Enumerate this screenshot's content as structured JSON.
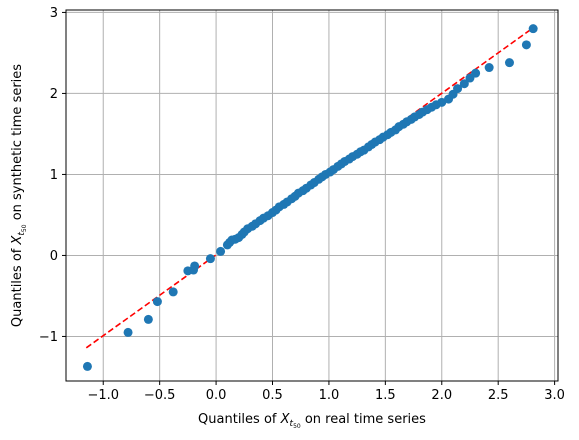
{
  "chart_data": {
    "type": "scatter",
    "xlabel": {
      "prefix": "Quantiles of ",
      "symbol": "X",
      "subscript": "t",
      "subsubscript": "50",
      "suffix": " on real time series"
    },
    "ylabel": {
      "prefix": "Quantiles of ",
      "symbol": "X",
      "subscript": "t",
      "subsubscript": "50",
      "suffix": " on synthetic time series"
    },
    "xlim": [
      -1.33,
      3.03
    ],
    "ylim": [
      -1.55,
      3.03
    ],
    "x_ticks": [
      -1.0,
      -0.5,
      0.0,
      0.5,
      1.0,
      1.5,
      2.0,
      2.5,
      3.0
    ],
    "x_tick_labels": [
      "−1.0",
      "−0.5",
      "0.0",
      "0.5",
      "1.0",
      "1.5",
      "2.0",
      "2.5",
      "3.0"
    ],
    "y_ticks": [
      -1,
      0,
      1,
      2,
      3
    ],
    "y_tick_labels": [
      "−1",
      "0",
      "1",
      "2",
      "3"
    ],
    "grid": true,
    "reference_line": {
      "x": [
        -1.15,
        2.82
      ],
      "y": [
        -1.14,
        2.82
      ],
      "color": "#ff0000",
      "style": "dashed"
    },
    "series": [
      {
        "color": "#1f77b4",
        "points": [
          [
            -1.14,
            -1.37
          ],
          [
            -0.78,
            -0.95
          ],
          [
            -0.6,
            -0.79
          ],
          [
            -0.52,
            -0.57
          ],
          [
            -0.38,
            -0.45
          ],
          [
            -0.25,
            -0.19
          ],
          [
            -0.2,
            -0.18
          ],
          [
            -0.19,
            -0.13
          ],
          [
            -0.05,
            -0.04
          ],
          [
            0.04,
            0.05
          ],
          [
            0.1,
            0.13
          ],
          [
            0.12,
            0.16
          ],
          [
            0.14,
            0.19
          ],
          [
            0.17,
            0.2
          ],
          [
            0.2,
            0.22
          ],
          [
            0.23,
            0.26
          ],
          [
            0.25,
            0.29
          ],
          [
            0.28,
            0.33
          ],
          [
            0.32,
            0.36
          ],
          [
            0.35,
            0.39
          ],
          [
            0.39,
            0.43
          ],
          [
            0.42,
            0.46
          ],
          [
            0.46,
            0.49
          ],
          [
            0.5,
            0.53
          ],
          [
            0.53,
            0.56
          ],
          [
            0.56,
            0.6
          ],
          [
            0.6,
            0.63
          ],
          [
            0.63,
            0.66
          ],
          [
            0.67,
            0.7
          ],
          [
            0.7,
            0.73
          ],
          [
            0.73,
            0.77
          ],
          [
            0.77,
            0.8
          ],
          [
            0.8,
            0.83
          ],
          [
            0.84,
            0.87
          ],
          [
            0.87,
            0.9
          ],
          [
            0.91,
            0.94
          ],
          [
            0.94,
            0.97
          ],
          [
            0.97,
            1.0
          ],
          [
            1.01,
            1.03
          ],
          [
            1.04,
            1.06
          ],
          [
            1.08,
            1.1
          ],
          [
            1.11,
            1.13
          ],
          [
            1.14,
            1.16
          ],
          [
            1.18,
            1.19
          ],
          [
            1.21,
            1.22
          ],
          [
            1.25,
            1.25
          ],
          [
            1.28,
            1.28
          ],
          [
            1.31,
            1.3
          ],
          [
            1.35,
            1.34
          ],
          [
            1.38,
            1.37
          ],
          [
            1.41,
            1.4
          ],
          [
            1.45,
            1.43
          ],
          [
            1.48,
            1.46
          ],
          [
            1.52,
            1.49
          ],
          [
            1.55,
            1.52
          ],
          [
            1.59,
            1.55
          ],
          [
            1.62,
            1.59
          ],
          [
            1.66,
            1.62
          ],
          [
            1.69,
            1.65
          ],
          [
            1.73,
            1.68
          ],
          [
            1.76,
            1.71
          ],
          [
            1.8,
            1.74
          ],
          [
            1.83,
            1.77
          ],
          [
            1.87,
            1.8
          ],
          [
            1.91,
            1.83
          ],
          [
            1.95,
            1.86
          ],
          [
            2.0,
            1.89
          ],
          [
            2.06,
            1.93
          ],
          [
            2.1,
            1.99
          ],
          [
            2.14,
            2.06
          ],
          [
            2.2,
            2.12
          ],
          [
            2.25,
            2.19
          ],
          [
            2.3,
            2.25
          ],
          [
            2.42,
            2.32
          ],
          [
            2.6,
            2.38
          ],
          [
            2.75,
            2.6
          ],
          [
            2.81,
            2.8
          ]
        ]
      }
    ]
  }
}
